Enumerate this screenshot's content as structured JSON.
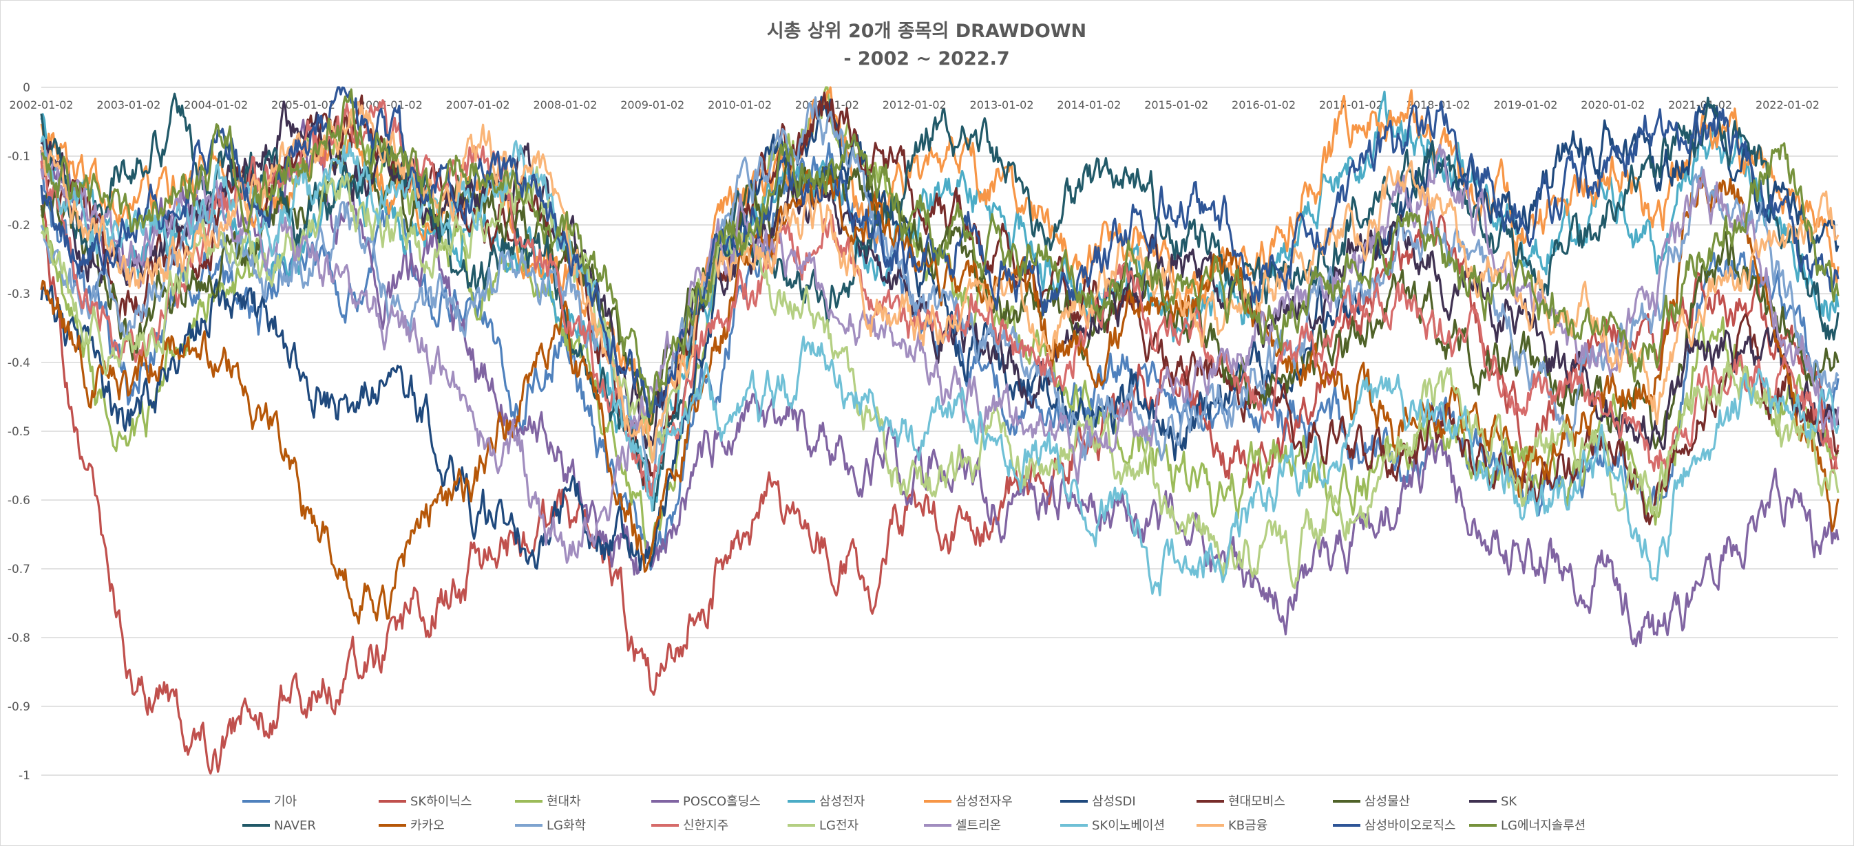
{
  "chart_data": {
    "type": "line",
    "title": "시총 상위 20개 종목의 DRAWDOWN",
    "subtitle": "- 2002 ~ 2022.7",
    "xlabel": "",
    "ylabel": "",
    "x_range": [
      "2002-01-02",
      "2022-07-31"
    ],
    "ylim": [
      -1,
      0
    ],
    "y_ticks": [
      "0",
      "-0.1",
      "-0.2",
      "-0.3",
      "-0.4",
      "-0.5",
      "-0.6",
      "-0.7",
      "-0.8",
      "-0.9",
      "-1"
    ],
    "x_ticks": [
      "2002-01-02",
      "2003-01-02",
      "2004-01-02",
      "2005-01-02",
      "2006-01-02",
      "2007-01-02",
      "2008-01-02",
      "2009-01-02",
      "2010-01-02",
      "2011-01-02",
      "2012-01-02",
      "2013-01-02",
      "2014-01-02",
      "2015-01-02",
      "2016-01-02",
      "2017-01-02",
      "2018-01-02",
      "2019-01-02",
      "2020-01-02",
      "2021-01-02",
      "2022-01-02"
    ],
    "x_tick_labels": [
      "2002-01-02",
      "2003-01-02",
      "2004-01-02",
      "2005-01-02",
      "2006-01-02",
      "2007-01-02",
      "2008-01-02",
      "2009-01-02",
      "2010-01-02",
      "2011-01-02",
      "2012-01-02",
      "2013-01-02",
      "2014-01-02",
      "2015-01-02",
      "2016-01-02",
      "2017-01-02",
      "2018-01-02",
      "2019-01-02",
      "2020-01-02",
      "2021-01-02",
      "2022-01-02"
    ],
    "grid": true,
    "legend_position": "bottom",
    "x": [
      2002.0,
      2002.5,
      2003.0,
      2003.5,
      2004.0,
      2004.5,
      2005.0,
      2005.5,
      2006.0,
      2006.5,
      2007.0,
      2007.5,
      2008.0,
      2008.5,
      2009.0,
      2009.5,
      2010.0,
      2010.5,
      2011.0,
      2011.5,
      2012.0,
      2012.5,
      2013.0,
      2013.5,
      2014.0,
      2014.5,
      2015.0,
      2015.5,
      2016.0,
      2016.5,
      2017.0,
      2017.5,
      2018.0,
      2018.5,
      2019.0,
      2019.5,
      2020.0,
      2020.5,
      2021.0,
      2021.5,
      2022.0,
      2022.5
    ],
    "series": [
      {
        "name": "기아",
        "color": "#4f81bd",
        "values": [
          -0.1,
          -0.3,
          -0.45,
          -0.3,
          -0.25,
          -0.35,
          -0.2,
          -0.3,
          -0.2,
          -0.35,
          -0.3,
          -0.45,
          -0.35,
          -0.55,
          -0.7,
          -0.5,
          -0.3,
          -0.15,
          -0.1,
          -0.2,
          -0.3,
          -0.4,
          -0.45,
          -0.5,
          -0.45,
          -0.4,
          -0.45,
          -0.5,
          -0.45,
          -0.5,
          -0.5,
          -0.55,
          -0.5,
          -0.55,
          -0.6,
          -0.6,
          -0.55,
          -0.6,
          -0.3,
          -0.25,
          -0.35,
          -0.45
        ]
      },
      {
        "name": "SK하이닉스",
        "color": "#c0504d",
        "values": [
          -0.2,
          -0.55,
          -0.85,
          -0.9,
          -0.95,
          -0.9,
          -0.88,
          -0.85,
          -0.8,
          -0.75,
          -0.7,
          -0.65,
          -0.6,
          -0.7,
          -0.88,
          -0.75,
          -0.65,
          -0.6,
          -0.65,
          -0.7,
          -0.6,
          -0.65,
          -0.6,
          -0.55,
          -0.5,
          -0.45,
          -0.4,
          -0.5,
          -0.55,
          -0.45,
          -0.35,
          -0.25,
          -0.2,
          -0.35,
          -0.5,
          -0.4,
          -0.35,
          -0.4,
          -0.3,
          -0.3,
          -0.35,
          -0.5
        ]
      },
      {
        "name": "현대차",
        "color": "#9bbb59",
        "values": [
          -0.2,
          -0.4,
          -0.55,
          -0.4,
          -0.3,
          -0.25,
          -0.1,
          -0.05,
          -0.15,
          -0.2,
          -0.3,
          -0.25,
          -0.35,
          -0.5,
          -0.65,
          -0.4,
          -0.2,
          -0.1,
          -0.05,
          -0.1,
          -0.2,
          -0.3,
          -0.35,
          -0.4,
          -0.45,
          -0.5,
          -0.55,
          -0.6,
          -0.55,
          -0.55,
          -0.6,
          -0.55,
          -0.5,
          -0.55,
          -0.55,
          -0.55,
          -0.5,
          -0.6,
          -0.35,
          -0.4,
          -0.45,
          -0.55
        ]
      },
      {
        "name": "POSCO홀딩스",
        "color": "#8064a2",
        "values": [
          -0.1,
          -0.2,
          -0.3,
          -0.2,
          -0.15,
          -0.2,
          -0.1,
          -0.2,
          -0.3,
          -0.25,
          -0.4,
          -0.5,
          -0.55,
          -0.65,
          -0.7,
          -0.55,
          -0.45,
          -0.5,
          -0.5,
          -0.55,
          -0.55,
          -0.55,
          -0.6,
          -0.6,
          -0.58,
          -0.6,
          -0.65,
          -0.7,
          -0.75,
          -0.72,
          -0.65,
          -0.6,
          -0.55,
          -0.62,
          -0.68,
          -0.7,
          -0.7,
          -0.8,
          -0.72,
          -0.65,
          -0.6,
          -0.68
        ]
      },
      {
        "name": "삼성전자",
        "color": "#4bacc6",
        "values": [
          -0.05,
          -0.15,
          -0.25,
          -0.2,
          -0.2,
          -0.25,
          -0.2,
          -0.15,
          -0.2,
          -0.25,
          -0.2,
          -0.25,
          -0.3,
          -0.45,
          -0.6,
          -0.35,
          -0.2,
          -0.15,
          -0.1,
          -0.25,
          -0.2,
          -0.15,
          -0.2,
          -0.25,
          -0.3,
          -0.25,
          -0.35,
          -0.3,
          -0.3,
          -0.2,
          -0.1,
          -0.05,
          -0.1,
          -0.15,
          -0.25,
          -0.2,
          -0.15,
          -0.25,
          -0.05,
          -0.1,
          -0.2,
          -0.3
        ]
      },
      {
        "name": "삼성전자우",
        "color": "#f79646",
        "values": [
          -0.05,
          -0.15,
          -0.2,
          -0.15,
          -0.1,
          -0.2,
          -0.15,
          -0.1,
          -0.15,
          -0.2,
          -0.15,
          -0.2,
          -0.25,
          -0.35,
          -0.5,
          -0.3,
          -0.15,
          -0.1,
          -0.05,
          -0.2,
          -0.15,
          -0.1,
          -0.15,
          -0.2,
          -0.25,
          -0.2,
          -0.3,
          -0.25,
          -0.25,
          -0.15,
          -0.05,
          -0.05,
          -0.1,
          -0.15,
          -0.2,
          -0.15,
          -0.1,
          -0.2,
          -0.05,
          -0.1,
          -0.15,
          -0.25
        ]
      },
      {
        "name": "삼성SDI",
        "color": "#1f497d",
        "values": [
          -0.3,
          -0.4,
          -0.5,
          -0.4,
          -0.3,
          -0.35,
          -0.4,
          -0.45,
          -0.4,
          -0.5,
          -0.6,
          -0.65,
          -0.6,
          -0.65,
          -0.7,
          -0.4,
          -0.2,
          -0.1,
          -0.05,
          -0.15,
          -0.25,
          -0.35,
          -0.4,
          -0.45,
          -0.5,
          -0.45,
          -0.5,
          -0.45,
          -0.4,
          -0.35,
          -0.3,
          -0.2,
          -0.1,
          -0.15,
          -0.2,
          -0.1,
          -0.05,
          -0.15,
          -0.05,
          -0.1,
          -0.2,
          -0.25
        ]
      },
      {
        "name": "현대모비스",
        "color": "#772c2a",
        "values": [
          -0.1,
          -0.2,
          -0.3,
          -0.25,
          -0.2,
          -0.15,
          -0.1,
          -0.05,
          -0.1,
          -0.15,
          -0.2,
          -0.15,
          -0.25,
          -0.4,
          -0.55,
          -0.35,
          -0.2,
          -0.1,
          -0.05,
          -0.1,
          -0.15,
          -0.2,
          -0.25,
          -0.3,
          -0.3,
          -0.35,
          -0.4,
          -0.45,
          -0.45,
          -0.5,
          -0.5,
          -0.55,
          -0.5,
          -0.5,
          -0.55,
          -0.55,
          -0.5,
          -0.6,
          -0.45,
          -0.4,
          -0.45,
          -0.5
        ]
      },
      {
        "name": "삼성물산",
        "color": "#4f6228",
        "values": [
          -0.15,
          -0.25,
          -0.35,
          -0.3,
          -0.25,
          -0.2,
          -0.15,
          -0.1,
          -0.15,
          -0.2,
          -0.15,
          -0.2,
          -0.25,
          -0.35,
          -0.45,
          -0.3,
          -0.2,
          -0.15,
          -0.1,
          -0.15,
          -0.2,
          -0.25,
          -0.3,
          -0.3,
          -0.35,
          -0.3,
          -0.3,
          -0.4,
          -0.45,
          -0.4,
          -0.35,
          -0.3,
          -0.35,
          -0.4,
          -0.4,
          -0.45,
          -0.45,
          -0.5,
          -0.3,
          -0.25,
          -0.35,
          -0.4
        ]
      },
      {
        "name": "SK",
        "color": "#3f3151",
        "values": [
          -0.1,
          -0.2,
          -0.25,
          -0.2,
          -0.15,
          -0.1,
          -0.05,
          -0.1,
          -0.15,
          -0.2,
          -0.15,
          -0.1,
          -0.2,
          -0.35,
          -0.5,
          -0.3,
          -0.25,
          -0.2,
          -0.15,
          -0.25,
          -0.3,
          -0.35,
          -0.4,
          -0.4,
          -0.35,
          -0.3,
          -0.25,
          -0.3,
          -0.35,
          -0.3,
          -0.25,
          -0.2,
          -0.25,
          -0.3,
          -0.35,
          -0.4,
          -0.45,
          -0.5,
          -0.35,
          -0.4,
          -0.45,
          -0.5
        ]
      },
      {
        "name": "NAVER",
        "color": "#215968",
        "values": [
          -0.05,
          -0.2,
          -0.1,
          -0.05,
          -0.15,
          -0.1,
          -0.2,
          -0.15,
          -0.1,
          -0.2,
          -0.3,
          -0.2,
          -0.3,
          -0.45,
          -0.6,
          -0.35,
          -0.2,
          -0.25,
          -0.3,
          -0.2,
          -0.1,
          -0.05,
          -0.1,
          -0.2,
          -0.15,
          -0.1,
          -0.2,
          -0.25,
          -0.3,
          -0.25,
          -0.2,
          -0.15,
          -0.1,
          -0.2,
          -0.3,
          -0.25,
          -0.2,
          -0.1,
          -0.05,
          -0.05,
          -0.25,
          -0.35
        ]
      },
      {
        "name": "카카오",
        "color": "#b65708",
        "values": [
          -0.3,
          -0.4,
          -0.45,
          -0.35,
          -0.4,
          -0.45,
          -0.6,
          -0.7,
          -0.75,
          -0.6,
          -0.55,
          -0.45,
          -0.35,
          -0.5,
          -0.7,
          -0.45,
          -0.3,
          -0.2,
          -0.15,
          -0.2,
          -0.25,
          -0.3,
          -0.25,
          -0.35,
          -0.4,
          -0.35,
          -0.3,
          -0.25,
          -0.35,
          -0.4,
          -0.45,
          -0.5,
          -0.45,
          -0.5,
          -0.55,
          -0.5,
          -0.45,
          -0.4,
          -0.1,
          -0.15,
          -0.45,
          -0.6
        ]
      },
      {
        "name": "LG화학",
        "color": "#7ea3cf",
        "values": [
          -0.2,
          -0.3,
          -0.35,
          -0.25,
          -0.2,
          -0.3,
          -0.25,
          -0.2,
          -0.3,
          -0.35,
          -0.3,
          -0.25,
          -0.3,
          -0.4,
          -0.55,
          -0.3,
          -0.15,
          -0.1,
          -0.05,
          -0.2,
          -0.3,
          -0.35,
          -0.4,
          -0.45,
          -0.5,
          -0.45,
          -0.5,
          -0.45,
          -0.4,
          -0.35,
          -0.3,
          -0.25,
          -0.2,
          -0.3,
          -0.4,
          -0.45,
          -0.4,
          -0.35,
          -0.1,
          -0.15,
          -0.3,
          -0.45
        ]
      },
      {
        "name": "신한지주",
        "color": "#d66b6a",
        "values": [
          -0.1,
          -0.3,
          -0.4,
          -0.3,
          -0.2,
          -0.15,
          -0.1,
          -0.05,
          -0.1,
          -0.15,
          -0.1,
          -0.2,
          -0.3,
          -0.45,
          -0.6,
          -0.4,
          -0.3,
          -0.25,
          -0.2,
          -0.3,
          -0.35,
          -0.3,
          -0.35,
          -0.4,
          -0.35,
          -0.3,
          -0.35,
          -0.4,
          -0.45,
          -0.4,
          -0.35,
          -0.3,
          -0.35,
          -0.4,
          -0.45,
          -0.45,
          -0.5,
          -0.55,
          -0.45,
          -0.4,
          -0.45,
          -0.5
        ]
      },
      {
        "name": "LG전자",
        "color": "#b4cf82",
        "values": [
          -0.2,
          -0.35,
          -0.4,
          -0.3,
          -0.2,
          -0.25,
          -0.2,
          -0.15,
          -0.2,
          -0.25,
          -0.2,
          -0.15,
          -0.2,
          -0.35,
          -0.55,
          -0.3,
          -0.2,
          -0.3,
          -0.35,
          -0.5,
          -0.6,
          -0.55,
          -0.5,
          -0.55,
          -0.5,
          -0.55,
          -0.6,
          -0.65,
          -0.7,
          -0.65,
          -0.6,
          -0.55,
          -0.45,
          -0.5,
          -0.55,
          -0.5,
          -0.55,
          -0.6,
          -0.45,
          -0.4,
          -0.5,
          -0.55
        ]
      },
      {
        "name": "셀트리온",
        "color": "#a18dbf",
        "values": [
          -0.1,
          -0.2,
          -0.25,
          -0.2,
          -0.15,
          -0.2,
          -0.25,
          -0.3,
          -0.35,
          -0.4,
          -0.5,
          -0.55,
          -0.7,
          -0.6,
          -0.45,
          -0.3,
          -0.2,
          -0.25,
          -0.3,
          -0.35,
          -0.4,
          -0.45,
          -0.5,
          -0.5,
          -0.55,
          -0.5,
          -0.45,
          -0.4,
          -0.35,
          -0.3,
          -0.25,
          -0.2,
          -0.1,
          -0.2,
          -0.3,
          -0.35,
          -0.4,
          -0.3,
          -0.15,
          -0.2,
          -0.35,
          -0.45
        ]
      },
      {
        "name": "SK이노베이션",
        "color": "#6fc0d6",
        "values": [
          -0.1,
          -0.2,
          -0.25,
          -0.2,
          -0.15,
          -0.2,
          -0.15,
          -0.1,
          -0.15,
          -0.2,
          -0.15,
          -0.1,
          -0.2,
          -0.4,
          -0.6,
          -0.45,
          -0.5,
          -0.45,
          -0.4,
          -0.45,
          -0.5,
          -0.45,
          -0.5,
          -0.55,
          -0.6,
          -0.65,
          -0.7,
          -0.65,
          -0.6,
          -0.55,
          -0.5,
          -0.45,
          -0.5,
          -0.55,
          -0.6,
          -0.6,
          -0.55,
          -0.7,
          -0.5,
          -0.45,
          -0.45,
          -0.5
        ]
      },
      {
        "name": "KB금융",
        "color": "#fab577",
        "values": [
          -0.1,
          -0.2,
          -0.3,
          -0.25,
          -0.2,
          -0.15,
          -0.1,
          -0.05,
          -0.1,
          -0.15,
          -0.1,
          -0.15,
          -0.2,
          -0.4,
          -0.55,
          -0.35,
          -0.25,
          -0.2,
          -0.2,
          -0.3,
          -0.35,
          -0.3,
          -0.3,
          -0.35,
          -0.3,
          -0.25,
          -0.3,
          -0.35,
          -0.3,
          -0.25,
          -0.2,
          -0.15,
          -0.2,
          -0.25,
          -0.3,
          -0.3,
          -0.35,
          -0.45,
          -0.3,
          -0.25,
          -0.2,
          -0.2
        ]
      },
      {
        "name": "삼성바이오로직스",
        "color": "#2e5597",
        "values": [
          -0.15,
          -0.25,
          -0.2,
          -0.15,
          -0.1,
          -0.15,
          -0.1,
          -0.05,
          -0.1,
          -0.15,
          -0.1,
          -0.15,
          -0.2,
          -0.35,
          -0.5,
          -0.3,
          -0.2,
          -0.15,
          -0.1,
          -0.2,
          -0.25,
          -0.2,
          -0.25,
          -0.3,
          -0.25,
          -0.2,
          -0.15,
          -0.2,
          -0.25,
          -0.2,
          -0.15,
          -0.1,
          -0.05,
          -0.1,
          -0.2,
          -0.15,
          -0.1,
          -0.05,
          -0.05,
          -0.1,
          -0.2,
          -0.3
        ]
      },
      {
        "name": "LG에너지솔루션",
        "color": "#76923c",
        "values": [
          -0.1,
          -0.15,
          -0.2,
          -0.15,
          -0.1,
          -0.15,
          -0.1,
          -0.05,
          -0.1,
          -0.15,
          -0.1,
          -0.15,
          -0.2,
          -0.3,
          -0.45,
          -0.3,
          -0.2,
          -0.15,
          -0.1,
          -0.15,
          -0.2,
          -0.2,
          -0.25,
          -0.25,
          -0.3,
          -0.25,
          -0.3,
          -0.3,
          -0.35,
          -0.3,
          -0.25,
          -0.2,
          -0.25,
          -0.3,
          -0.3,
          -0.35,
          -0.35,
          -0.4,
          -0.25,
          -0.2,
          -0.1,
          -0.3
        ]
      }
    ]
  }
}
